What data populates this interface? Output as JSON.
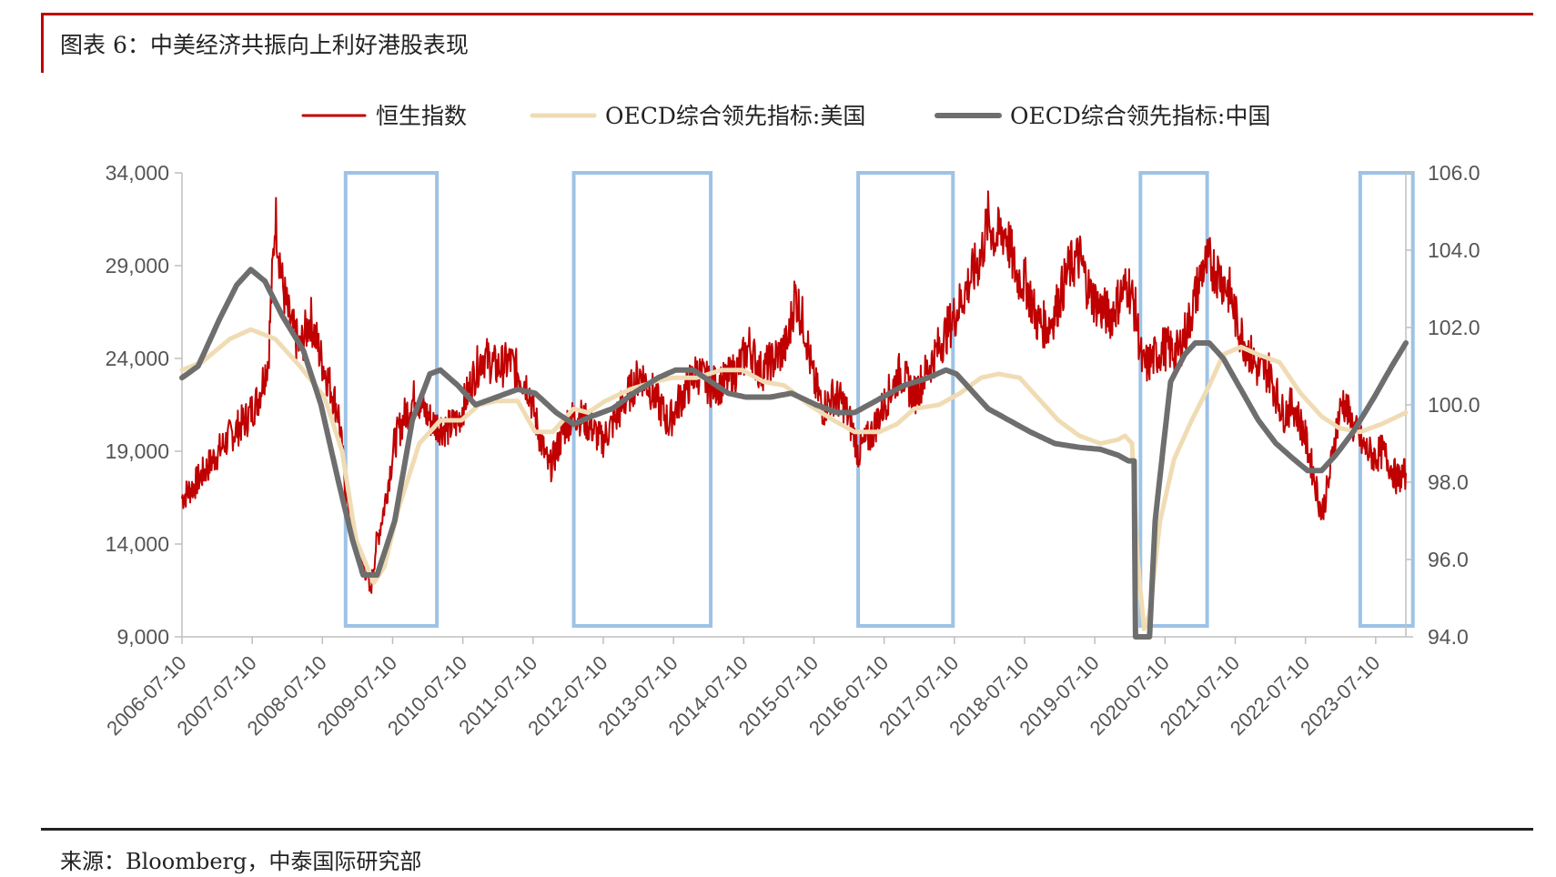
{
  "figure_title": "图表 6：中美经济共振向上利好港股表现",
  "source": "来源：Bloomberg，中泰国际研究部",
  "chart_data": {
    "type": "line",
    "left_axis": {
      "min": 9000,
      "max": 34000,
      "ticks": [
        9000,
        14000,
        19000,
        24000,
        29000,
        34000
      ],
      "tick_labels": [
        "9,000",
        "14,000",
        "19,000",
        "24,000",
        "29,000",
        "34,000"
      ]
    },
    "right_axis": {
      "min": 94,
      "max": 106,
      "ticks": [
        94,
        96,
        98,
        100,
        102,
        104,
        106
      ],
      "tick_labels": [
        "94.0",
        "96.0",
        "98.0",
        "100.0",
        "102.0",
        "104.0",
        "106.0"
      ]
    },
    "x_range": [
      2006.52,
      2023.95
    ],
    "x_ticks": [
      2006.52,
      2007.52,
      2008.52,
      2009.52,
      2010.52,
      2011.52,
      2012.52,
      2013.52,
      2014.52,
      2015.52,
      2016.52,
      2017.52,
      2018.52,
      2019.52,
      2020.52,
      2021.52,
      2022.52,
      2023.52
    ],
    "x_tick_labels": [
      "2006-07-10",
      "2007-07-10",
      "2008-07-10",
      "2009-07-10",
      "2010-07-10",
      "2011-07-10",
      "2012-07-10",
      "2013-07-10",
      "2014-07-10",
      "2015-07-10",
      "2016-07-10",
      "2017-07-10",
      "2018-07-10",
      "2019-07-10",
      "2020-07-10",
      "2021-07-10",
      "2022-07-10",
      "2023-07-10"
    ],
    "grid": false,
    "legend_position": "top-center",
    "highlight_periods": [
      [
        2008.85,
        2010.15
      ],
      [
        2012.1,
        2014.05
      ],
      [
        2016.15,
        2017.5
      ],
      [
        2020.17,
        2021.12
      ],
      [
        2023.3,
        2024.05
      ]
    ],
    "series": [
      {
        "name": "恒生指数",
        "axis": "left",
        "color": "#c00000",
        "width": 2,
        "jitter": 0.05,
        "points": [
          [
            2006.52,
            16500
          ],
          [
            2006.7,
            17200
          ],
          [
            2006.95,
            18500
          ],
          [
            2007.2,
            19800
          ],
          [
            2007.45,
            20800
          ],
          [
            2007.6,
            21800
          ],
          [
            2007.75,
            24000
          ],
          [
            2007.82,
            29500
          ],
          [
            2007.85,
            31800
          ],
          [
            2007.95,
            28000
          ],
          [
            2008.05,
            26000
          ],
          [
            2008.2,
            24500
          ],
          [
            2008.35,
            26200
          ],
          [
            2008.5,
            24000
          ],
          [
            2008.65,
            22300
          ],
          [
            2008.75,
            21000
          ],
          [
            2008.85,
            17000
          ],
          [
            2008.95,
            14500
          ],
          [
            2009.05,
            13000
          ],
          [
            2009.15,
            12500
          ],
          [
            2009.2,
            11300
          ],
          [
            2009.28,
            13800
          ],
          [
            2009.4,
            16000
          ],
          [
            2009.55,
            19500
          ],
          [
            2009.7,
            21000
          ],
          [
            2009.85,
            22000
          ],
          [
            2010.0,
            21000
          ],
          [
            2010.1,
            20500
          ],
          [
            2010.3,
            20200
          ],
          [
            2010.45,
            20600
          ],
          [
            2010.65,
            22800
          ],
          [
            2010.8,
            24200
          ],
          [
            2011.0,
            23500
          ],
          [
            2011.2,
            23800
          ],
          [
            2011.45,
            22500
          ],
          [
            2011.6,
            20000
          ],
          [
            2011.75,
            18000
          ],
          [
            2011.85,
            19000
          ],
          [
            2012.0,
            20500
          ],
          [
            2012.15,
            21000
          ],
          [
            2012.35,
            20300
          ],
          [
            2012.5,
            19500
          ],
          [
            2012.7,
            20800
          ],
          [
            2012.9,
            22200
          ],
          [
            2013.05,
            23200
          ],
          [
            2013.25,
            22000
          ],
          [
            2013.45,
            20500
          ],
          [
            2013.6,
            21700
          ],
          [
            2013.85,
            23300
          ],
          [
            2014.05,
            22500
          ],
          [
            2014.25,
            22700
          ],
          [
            2014.45,
            23500
          ],
          [
            2014.6,
            24700
          ],
          [
            2014.75,
            23300
          ],
          [
            2014.95,
            23900
          ],
          [
            2015.15,
            24800
          ],
          [
            2015.25,
            27500
          ],
          [
            2015.4,
            25500
          ],
          [
            2015.5,
            23000
          ],
          [
            2015.65,
            21300
          ],
          [
            2015.8,
            22000
          ],
          [
            2015.95,
            21500
          ],
          [
            2016.1,
            19800
          ],
          [
            2016.15,
            18900
          ],
          [
            2016.35,
            20000
          ],
          [
            2016.55,
            21800
          ],
          [
            2016.75,
            23300
          ],
          [
            2016.95,
            22000
          ],
          [
            2017.15,
            23500
          ],
          [
            2017.35,
            25000
          ],
          [
            2017.55,
            26500
          ],
          [
            2017.75,
            28300
          ],
          [
            2017.9,
            29500
          ],
          [
            2018.0,
            31500
          ],
          [
            2018.1,
            30500
          ],
          [
            2018.25,
            30900
          ],
          [
            2018.4,
            28500
          ],
          [
            2018.55,
            28000
          ],
          [
            2018.7,
            26000
          ],
          [
            2018.85,
            25700
          ],
          [
            2018.95,
            26500
          ],
          [
            2019.15,
            28800
          ],
          [
            2019.3,
            29500
          ],
          [
            2019.45,
            27500
          ],
          [
            2019.6,
            26700
          ],
          [
            2019.75,
            26300
          ],
          [
            2019.9,
            27500
          ],
          [
            2020.0,
            28000
          ],
          [
            2020.1,
            26500
          ],
          [
            2020.2,
            23500
          ],
          [
            2020.3,
            23800
          ],
          [
            2020.5,
            24600
          ],
          [
            2020.7,
            24300
          ],
          [
            2020.85,
            25800
          ],
          [
            2021.05,
            28800
          ],
          [
            2021.15,
            29200
          ],
          [
            2021.3,
            28500
          ],
          [
            2021.45,
            27500
          ],
          [
            2021.55,
            25800
          ],
          [
            2021.7,
            24500
          ],
          [
            2021.85,
            23300
          ],
          [
            2022.0,
            23300
          ],
          [
            2022.2,
            21000
          ],
          [
            2022.35,
            21500
          ],
          [
            2022.5,
            20000
          ],
          [
            2022.65,
            17500
          ],
          [
            2022.75,
            15600
          ],
          [
            2022.85,
            17300
          ],
          [
            2022.95,
            20000
          ],
          [
            2023.05,
            21800
          ],
          [
            2023.2,
            20300
          ],
          [
            2023.35,
            19200
          ],
          [
            2023.5,
            18700
          ],
          [
            2023.62,
            19000
          ],
          [
            2023.72,
            18300
          ],
          [
            2023.82,
            17500
          ],
          [
            2023.95,
            17800
          ]
        ]
      },
      {
        "name": "OECD综合领先指标:美国",
        "axis": "right",
        "color": "#f0dcb4",
        "width": 5,
        "jitter": 0,
        "points": [
          [
            2006.52,
            100.9
          ],
          [
            2006.8,
            101.1
          ],
          [
            2007.2,
            101.7
          ],
          [
            2007.5,
            101.95
          ],
          [
            2007.85,
            101.7
          ],
          [
            2008.2,
            101.0
          ],
          [
            2008.55,
            100.2
          ],
          [
            2008.8,
            98.8
          ],
          [
            2009.0,
            96.5
          ],
          [
            2009.25,
            95.4
          ],
          [
            2009.4,
            95.8
          ],
          [
            2009.6,
            97.3
          ],
          [
            2009.9,
            99.0
          ],
          [
            2010.2,
            99.6
          ],
          [
            2010.5,
            99.6
          ],
          [
            2010.75,
            100.0
          ],
          [
            2011.0,
            100.1
          ],
          [
            2011.3,
            100.1
          ],
          [
            2011.55,
            99.3
          ],
          [
            2011.8,
            99.3
          ],
          [
            2012.1,
            99.9
          ],
          [
            2012.3,
            99.8
          ],
          [
            2012.55,
            100.1
          ],
          [
            2012.9,
            100.4
          ],
          [
            2013.25,
            100.6
          ],
          [
            2013.5,
            100.7
          ],
          [
            2013.85,
            100.7
          ],
          [
            2014.2,
            100.9
          ],
          [
            2014.5,
            100.9
          ],
          [
            2014.8,
            100.6
          ],
          [
            2015.1,
            100.5
          ],
          [
            2015.45,
            100.0
          ],
          [
            2015.8,
            99.6
          ],
          [
            2016.1,
            99.3
          ],
          [
            2016.45,
            99.3
          ],
          [
            2016.7,
            99.5
          ],
          [
            2016.95,
            99.9
          ],
          [
            2017.3,
            100.0
          ],
          [
            2017.6,
            100.3
          ],
          [
            2017.9,
            100.7
          ],
          [
            2018.15,
            100.8
          ],
          [
            2018.45,
            100.7
          ],
          [
            2018.75,
            100.1
          ],
          [
            2019.0,
            99.6
          ],
          [
            2019.3,
            99.2
          ],
          [
            2019.6,
            99.0
          ],
          [
            2019.85,
            99.1
          ],
          [
            2019.95,
            99.2
          ],
          [
            2020.05,
            99.0
          ],
          [
            2020.13,
            96.0
          ],
          [
            2020.22,
            94.2
          ],
          [
            2020.3,
            94.6
          ],
          [
            2020.45,
            97.0
          ],
          [
            2020.65,
            98.6
          ],
          [
            2020.9,
            99.6
          ],
          [
            2021.15,
            100.5
          ],
          [
            2021.35,
            101.3
          ],
          [
            2021.6,
            101.5
          ],
          [
            2021.85,
            101.3
          ],
          [
            2022.15,
            101.1
          ],
          [
            2022.45,
            100.3
          ],
          [
            2022.75,
            99.7
          ],
          [
            2023.0,
            99.4
          ],
          [
            2023.3,
            99.3
          ],
          [
            2023.6,
            99.5
          ],
          [
            2023.95,
            99.8
          ]
        ]
      },
      {
        "name": "OECD综合领先指标:中国",
        "axis": "right",
        "color": "#6e6e6e",
        "width": 6,
        "jitter": 0,
        "points": [
          [
            2006.52,
            100.7
          ],
          [
            2006.75,
            101.0
          ],
          [
            2007.05,
            102.2
          ],
          [
            2007.3,
            103.1
          ],
          [
            2007.5,
            103.5
          ],
          [
            2007.7,
            103.2
          ],
          [
            2007.95,
            102.3
          ],
          [
            2008.25,
            101.4
          ],
          [
            2008.5,
            100.0
          ],
          [
            2008.75,
            98.0
          ],
          [
            2008.95,
            96.5
          ],
          [
            2009.1,
            95.6
          ],
          [
            2009.3,
            95.6
          ],
          [
            2009.55,
            97.0
          ],
          [
            2009.8,
            99.6
          ],
          [
            2010.05,
            100.8
          ],
          [
            2010.2,
            100.9
          ],
          [
            2010.45,
            100.5
          ],
          [
            2010.7,
            100.0
          ],
          [
            2011.0,
            100.2
          ],
          [
            2011.3,
            100.4
          ],
          [
            2011.55,
            100.3
          ],
          [
            2011.85,
            99.8
          ],
          [
            2012.1,
            99.5
          ],
          [
            2012.35,
            99.7
          ],
          [
            2012.65,
            99.9
          ],
          [
            2012.95,
            100.3
          ],
          [
            2013.3,
            100.7
          ],
          [
            2013.55,
            100.9
          ],
          [
            2013.8,
            100.9
          ],
          [
            2014.05,
            100.6
          ],
          [
            2014.3,
            100.3
          ],
          [
            2014.55,
            100.2
          ],
          [
            2014.9,
            100.2
          ],
          [
            2015.2,
            100.3
          ],
          [
            2015.55,
            100.0
          ],
          [
            2015.85,
            99.8
          ],
          [
            2016.1,
            99.8
          ],
          [
            2016.4,
            100.1
          ],
          [
            2016.8,
            100.5
          ],
          [
            2017.15,
            100.7
          ],
          [
            2017.4,
            100.9
          ],
          [
            2017.55,
            100.8
          ],
          [
            2017.75,
            100.4
          ],
          [
            2018.0,
            99.9
          ],
          [
            2018.3,
            99.6
          ],
          [
            2018.6,
            99.3
          ],
          [
            2018.95,
            99.0
          ],
          [
            2019.3,
            98.9
          ],
          [
            2019.6,
            98.85
          ],
          [
            2019.85,
            98.7
          ],
          [
            2020.0,
            98.55
          ],
          [
            2020.08,
            98.55
          ],
          [
            2020.1,
            94.0
          ],
          [
            2020.3,
            94.0
          ],
          [
            2020.38,
            97.0
          ],
          [
            2020.5,
            99.0
          ],
          [
            2020.6,
            100.6
          ],
          [
            2020.8,
            101.3
          ],
          [
            2020.95,
            101.6
          ],
          [
            2021.15,
            101.6
          ],
          [
            2021.35,
            101.2
          ],
          [
            2021.6,
            100.4
          ],
          [
            2021.85,
            99.6
          ],
          [
            2022.1,
            99.0
          ],
          [
            2022.35,
            98.6
          ],
          [
            2022.55,
            98.3
          ],
          [
            2022.75,
            98.3
          ],
          [
            2022.95,
            98.7
          ],
          [
            2023.2,
            99.3
          ],
          [
            2023.5,
            100.2
          ],
          [
            2023.75,
            101.0
          ],
          [
            2023.95,
            101.6
          ]
        ]
      }
    ]
  }
}
